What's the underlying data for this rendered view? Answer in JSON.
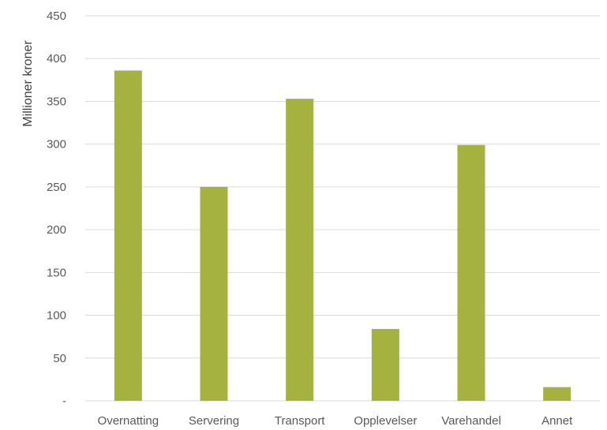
{
  "chart_data": {
    "type": "bar",
    "title": "",
    "xlabel": "",
    "ylabel": "Millioner kroner",
    "categories": [
      "Overnatting",
      "Servering",
      "Transport",
      "Opplevelser",
      "Varehandel",
      "Annet"
    ],
    "values": [
      386,
      250,
      353,
      84,
      299,
      16
    ],
    "ylim": [
      0,
      450
    ],
    "yticks": [
      0,
      50,
      100,
      150,
      200,
      250,
      300,
      350,
      400,
      450
    ],
    "ytick_labels": [
      "-",
      "50",
      "100",
      "150",
      "200",
      "250",
      "300",
      "350",
      "400",
      "450"
    ],
    "grid": true,
    "legend": "none",
    "bar_color": "#a5b23f",
    "grid_color": "#d9d9d9"
  }
}
